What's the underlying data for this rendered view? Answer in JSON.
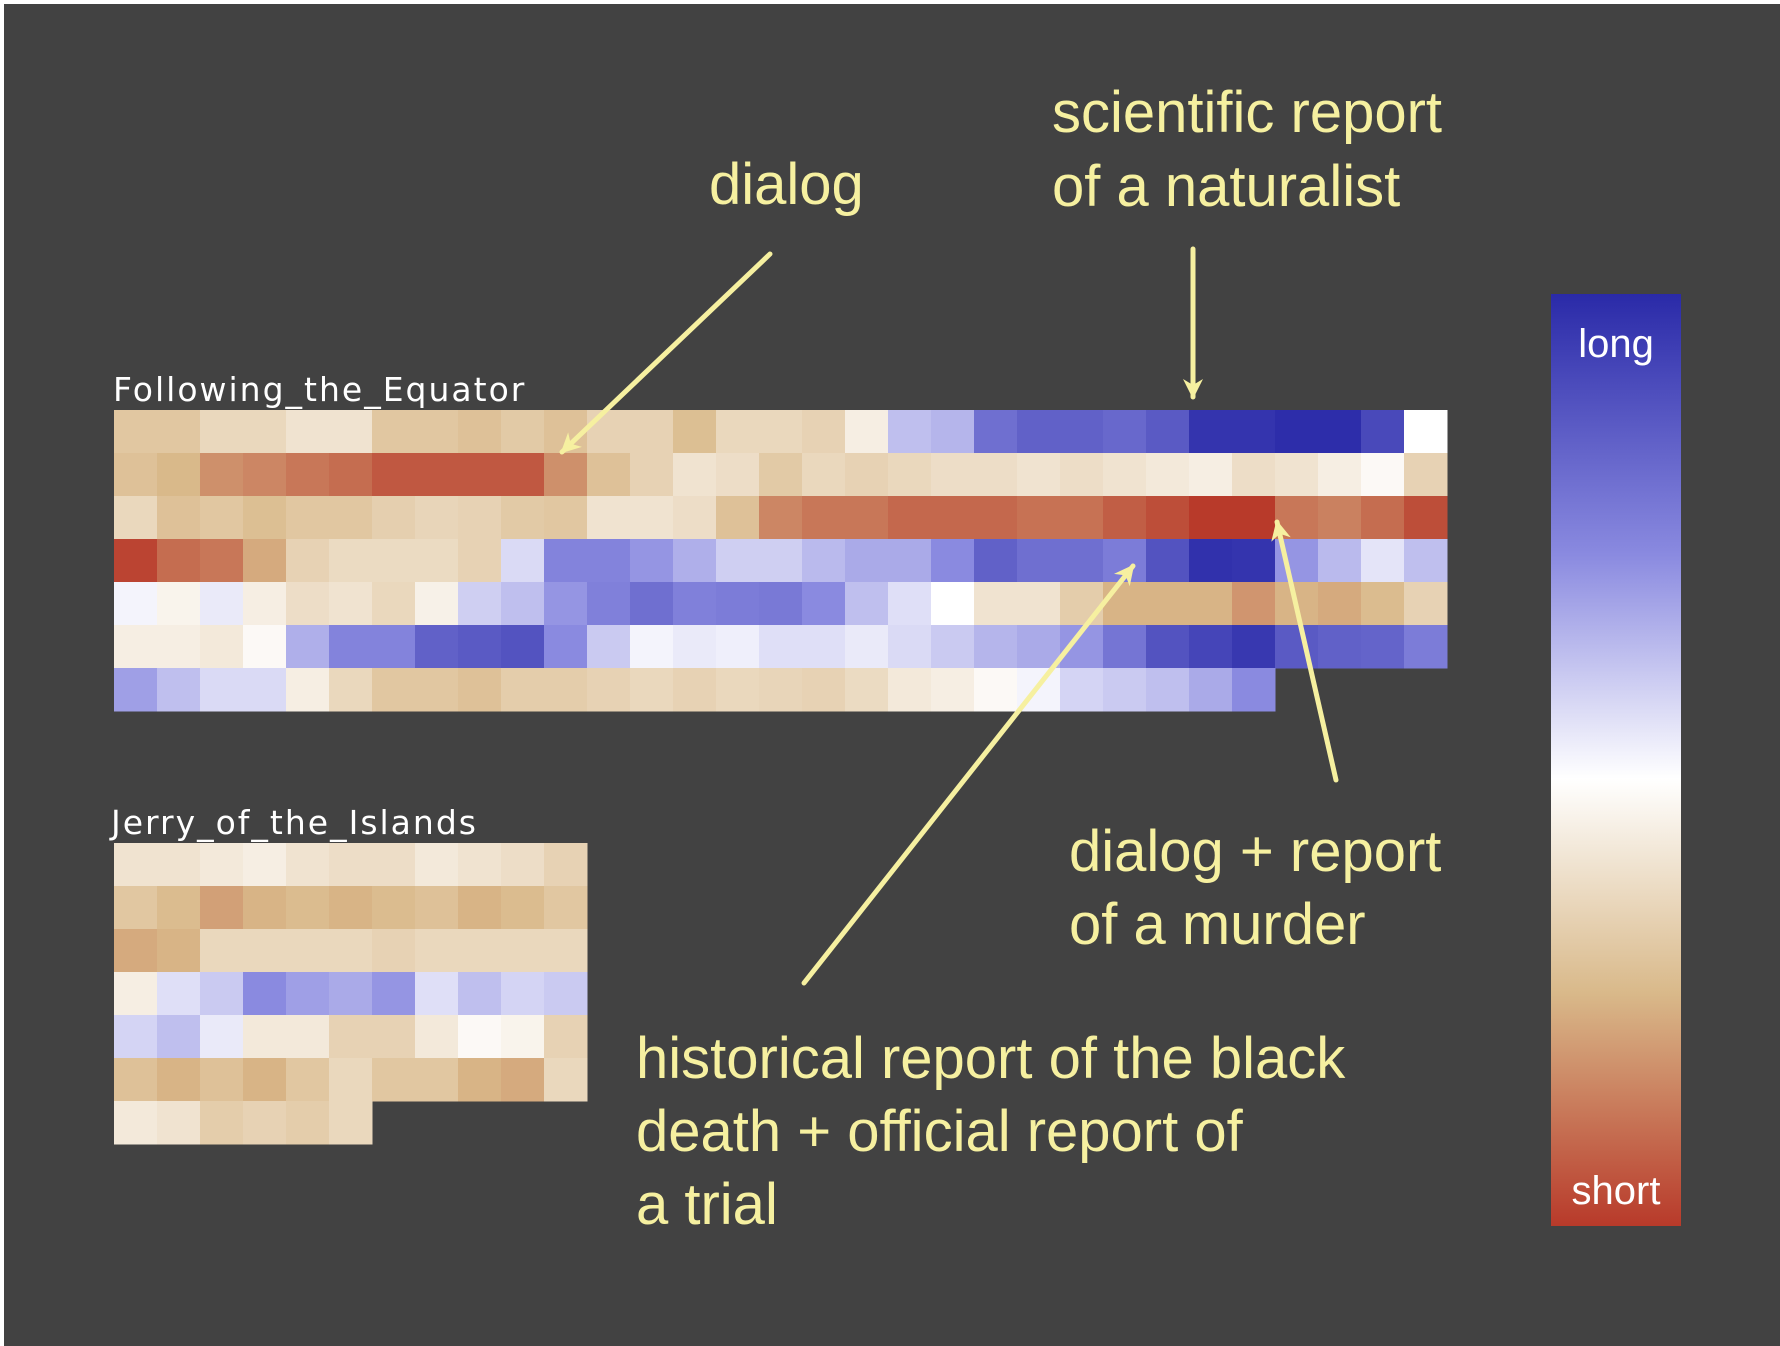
{
  "chart_data": {
    "type": "heatmap",
    "value_scale": "0 = short (red), 0.5 = white, 1 = long (blue)",
    "legend": {
      "high_label": "long",
      "low_label": "short"
    },
    "colors": {
      "short": "#b83a2a",
      "mid_beige": "#d9b98a",
      "white": "#ffffff",
      "long": "#2a2aa8",
      "background": "#424242",
      "annotation": "#f6f0a0"
    },
    "books": [
      {
        "title": "Following_the_Equator",
        "rows": [
          [
            0.3,
            0.3,
            0.36,
            0.36,
            0.4,
            0.4,
            0.3,
            0.3,
            0.28,
            0.31,
            0.28,
            0.34,
            0.34,
            0.27,
            0.36,
            0.36,
            0.34,
            0.44,
            0.62,
            0.64,
            0.8,
            0.84,
            0.84,
            0.82,
            0.86,
            0.97,
            0.97,
            0.99,
            0.99,
            0.91,
            0.5
          ],
          [
            0.28,
            0.25,
            0.17,
            0.15,
            0.12,
            0.1,
            0.06,
            0.06,
            0.06,
            0.06,
            0.17,
            0.28,
            0.34,
            0.4,
            0.38,
            0.31,
            0.36,
            0.34,
            0.36,
            0.38,
            0.38,
            0.4,
            0.38,
            0.4,
            0.42,
            0.44,
            0.38,
            0.4,
            0.44,
            0.48,
            0.34
          ],
          [
            0.36,
            0.28,
            0.3,
            0.27,
            0.3,
            0.3,
            0.33,
            0.35,
            0.34,
            0.31,
            0.3,
            0.4,
            0.4,
            0.38,
            0.28,
            0.15,
            0.12,
            0.12,
            0.09,
            0.09,
            0.09,
            0.11,
            0.11,
            0.07,
            0.04,
            0.0,
            0.0,
            0.12,
            0.14,
            0.1,
            0.04
          ],
          [
            0.02,
            0.1,
            0.12,
            0.22,
            0.34,
            0.37,
            0.37,
            0.37,
            0.34,
            0.57,
            0.74,
            0.74,
            0.7,
            0.65,
            0.59,
            0.59,
            0.63,
            0.66,
            0.66,
            0.72,
            0.84,
            0.8,
            0.8,
            0.76,
            0.88,
            0.98,
            0.97,
            0.7,
            0.63,
            0.55,
            0.62
          ],
          [
            0.52,
            0.46,
            0.54,
            0.44,
            0.38,
            0.4,
            0.36,
            0.45,
            0.59,
            0.62,
            0.7,
            0.75,
            0.8,
            0.75,
            0.76,
            0.77,
            0.72,
            0.62,
            0.56,
            0.5,
            0.4,
            0.4,
            0.32,
            0.24,
            0.24,
            0.24,
            0.18,
            0.24,
            0.22,
            0.26,
            0.34
          ],
          [
            0.44,
            0.44,
            0.42,
            0.48,
            0.65,
            0.74,
            0.74,
            0.84,
            0.86,
            0.88,
            0.72,
            0.6,
            0.52,
            0.54,
            0.53,
            0.56,
            0.56,
            0.54,
            0.57,
            0.6,
            0.64,
            0.66,
            0.7,
            0.78,
            0.88,
            0.92,
            0.96,
            0.86,
            0.84,
            0.83,
            0.76
          ],
          [
            0.68,
            0.62,
            0.57,
            0.57,
            0.44,
            0.36,
            0.3,
            0.3,
            0.28,
            0.32,
            0.32,
            0.34,
            0.36,
            0.34,
            0.36,
            0.35,
            0.34,
            0.37,
            0.42,
            0.44,
            0.48,
            0.52,
            0.58,
            0.6,
            0.62,
            0.66,
            0.72
          ]
        ]
      },
      {
        "title": "Jerry_of_the_Islands",
        "rows": [
          [
            0.4,
            0.4,
            0.42,
            0.44,
            0.4,
            0.38,
            0.38,
            0.42,
            0.4,
            0.38,
            0.34
          ],
          [
            0.3,
            0.26,
            0.2,
            0.24,
            0.26,
            0.24,
            0.26,
            0.28,
            0.24,
            0.26,
            0.3
          ],
          [
            0.22,
            0.24,
            0.36,
            0.36,
            0.36,
            0.36,
            0.34,
            0.36,
            0.36,
            0.36,
            0.36
          ],
          [
            0.44,
            0.56,
            0.6,
            0.72,
            0.68,
            0.66,
            0.7,
            0.56,
            0.62,
            0.58,
            0.6
          ],
          [
            0.58,
            0.62,
            0.54,
            0.42,
            0.42,
            0.34,
            0.34,
            0.42,
            0.48,
            0.46,
            0.34
          ],
          [
            0.28,
            0.24,
            0.28,
            0.24,
            0.3,
            0.36,
            0.3,
            0.3,
            0.24,
            0.22,
            0.36
          ],
          [
            0.42,
            0.4,
            0.32,
            0.34,
            0.32,
            0.36
          ]
        ]
      }
    ],
    "annotations": [
      {
        "lines": [
          "dialog"
        ]
      },
      {
        "lines": [
          "scientific report",
          "of a naturalist"
        ]
      },
      {
        "lines": [
          "dialog + report",
          "of a murder"
        ]
      },
      {
        "lines": [
          "historical report of the black",
          "death + official report of",
          "a trial"
        ]
      }
    ]
  }
}
